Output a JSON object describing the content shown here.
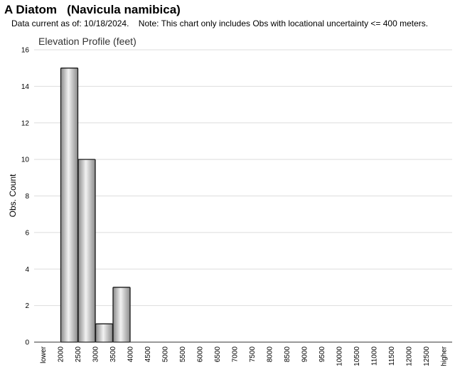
{
  "header": {
    "species_common": "A Diatom",
    "species_latin": "(Navicula namibica)",
    "data_current": "Data current as of: 10/18/2024.",
    "note": "Note: This chart only includes Obs with locational uncertainty <= 400 meters."
  },
  "chart_data": {
    "type": "bar",
    "title": "Elevation Profile (feet)",
    "xlabel": "",
    "ylabel": "Obs. Count",
    "ylim": [
      0,
      16
    ],
    "yticks": [
      0,
      2,
      4,
      6,
      8,
      10,
      12,
      14,
      16
    ],
    "grid": true,
    "categories": [
      "lower",
      "2000",
      "2500",
      "3000",
      "3500",
      "4000",
      "4500",
      "5000",
      "5500",
      "6000",
      "6500",
      "7000",
      "7500",
      "8000",
      "8500",
      "9000",
      "9500",
      "10000",
      "10500",
      "11000",
      "11500",
      "12000",
      "12500",
      "higher"
    ],
    "values": [
      0,
      15,
      10,
      1,
      3,
      0,
      0,
      0,
      0,
      0,
      0,
      0,
      0,
      0,
      0,
      0,
      0,
      0,
      0,
      0,
      0,
      0,
      0,
      0
    ],
    "colors": {
      "bar_light": "#f2f2f2",
      "bar_dark": "#8a8a8a",
      "bar_stroke": "#1a1a1a",
      "grid": "#dddddd"
    }
  }
}
